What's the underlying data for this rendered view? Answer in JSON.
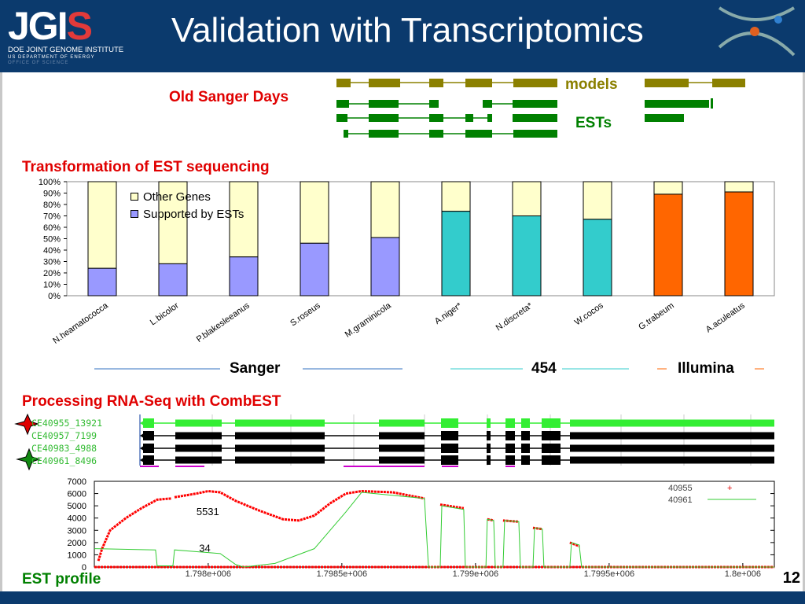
{
  "header": {
    "logo_text": "JGI",
    "logo_line1": "DOE JOINT GENOME INSTITUTE",
    "logo_line2": "US DEPARTMENT OF ENERGY",
    "logo_line3": "OFFICE OF SCIENCE",
    "title": "Validation with Transcriptomics"
  },
  "sanger": {
    "heading": "Old Sanger Days",
    "models_label": "models",
    "ests_label": "ESTs"
  },
  "colors": {
    "models": "#8b8000",
    "ests": "#008000",
    "other": "#ffffcc",
    "sanger": "#9999ff",
    "t454": "#33cccc",
    "illumina": "#ff6600",
    "title_red": "#e00000",
    "navy": "#0b3a6d"
  },
  "section2": {
    "heading": "Transformation of EST sequencing",
    "platforms": [
      "Sanger",
      "454",
      "Illumina"
    ]
  },
  "section3": {
    "heading": "Processing RNA-Seq with CombEST",
    "tracks": [
      "CE40955_13921",
      "CE40957_7199",
      "CE40983_4988",
      "CE40961_8496"
    ],
    "profile_label": "EST profile"
  },
  "page_number": "12",
  "chart_data": [
    {
      "type": "bar",
      "stacked": true,
      "title": "",
      "xlabel": "",
      "ylabel": "",
      "ylim": [
        0,
        100
      ],
      "yticks": [
        "0%",
        "10%",
        "20%",
        "30%",
        "40%",
        "50%",
        "60%",
        "70%",
        "80%",
        "90%",
        "100%"
      ],
      "categories": [
        "N.heamatococca",
        "L.bicolor",
        "P.blakesleeanus",
        "S.roseus",
        "M.graminicola",
        "A.niger*",
        "N.discreta*",
        "W.cocos",
        "G.trabeum",
        "A.aculeatus"
      ],
      "platform": [
        "Sanger",
        "Sanger",
        "Sanger",
        "Sanger",
        "Sanger",
        "454",
        "454",
        "454",
        "Illumina",
        "Illumina"
      ],
      "series": [
        {
          "name": "Supported by ESTs",
          "values": [
            24,
            28,
            34,
            46,
            51,
            74,
            70,
            67,
            89,
            91
          ]
        },
        {
          "name": "Other Genes",
          "values": [
            76,
            72,
            66,
            54,
            49,
            26,
            30,
            33,
            11,
            9
          ]
        }
      ],
      "legend": [
        "Other Genes",
        "Supported by ESTs"
      ],
      "legend_position": "top-left"
    },
    {
      "type": "line",
      "ylim": [
        0,
        7000
      ],
      "xlim": [
        1797574,
        1800118
      ],
      "yticks": [
        "0",
        "1000",
        "2000",
        "3000",
        "4000",
        "5000",
        "6000",
        "7000"
      ],
      "xticks": [
        {
          "v": 1798000,
          "label": "1.798e+006"
        },
        {
          "v": 1798500,
          "label": "1.7985e+006"
        },
        {
          "v": 1799000,
          "label": "1.799e+006"
        },
        {
          "v": 1799500,
          "label": "1.7995e+006"
        },
        {
          "v": 1800000,
          "label": "1.8e+006"
        }
      ],
      "legend": [
        "40955",
        "40961"
      ],
      "legend_position": "top-right",
      "annotations": [
        {
          "text": "5531",
          "x": 1798000,
          "y": 4500
        },
        {
          "text": "34",
          "x": 1798010,
          "y": 1500
        }
      ],
      "series": [
        {
          "name": "40955",
          "color": "#ff0000",
          "segments": [
            [
              [
                1797589,
                500
              ],
              [
                1797603,
                1500
              ],
              [
                1797633,
                3000
              ],
              [
                1797692,
                4000
              ],
              [
                1797750,
                4800
              ],
              [
                1797809,
                5500
              ],
              [
                1797862,
                5600
              ]
            ],
            [
              [
                1797874,
                5700
              ],
              [
                1797956,
                6000
              ],
              [
                1798000,
                6200
              ],
              [
                1798045,
                6100
              ],
              [
                1798103,
                5400
              ],
              [
                1798192,
                4600
              ],
              [
                1798280,
                3900
              ],
              [
                1798339,
                3800
              ],
              [
                1798397,
                4200
              ],
              [
                1798456,
                5200
              ],
              [
                1798515,
                6000
              ],
              [
                1798574,
                6200
              ],
              [
                1798691,
                6100
              ],
              [
                1798809,
                5600
              ]
            ],
            [
              [
                1798868,
                5100
              ],
              [
                1798956,
                4800
              ]
            ],
            [
              [
                1799044,
                3900
              ],
              [
                1799068,
                3800
              ]
            ],
            [
              [
                1799103,
                3800
              ],
              [
                1799162,
                3700
              ]
            ],
            [
              [
                1799215,
                3200
              ],
              [
                1799250,
                3100
              ]
            ],
            [
              [
                1799353,
                2000
              ],
              [
                1799388,
                1700
              ]
            ],
            [
              [
                1797574,
                0
              ],
              [
                1800118,
                0
              ]
            ]
          ]
        },
        {
          "name": "40961",
          "color": "#33cc33",
          "segments": [
            [
              [
                1797574,
                1500
              ],
              [
                1797803,
                1400
              ],
              [
                1797809,
                100
              ],
              [
                1797868,
                100
              ],
              [
                1797874,
                1400
              ],
              [
                1798045,
                1100
              ],
              [
                1798103,
                200
              ],
              [
                1798133,
                0
              ],
              [
                1798250,
                300
              ],
              [
                1798397,
                1500
              ],
              [
                1798515,
                4500
              ],
              [
                1798574,
                6100
              ],
              [
                1798809,
                5600
              ],
              [
                1798824,
                0
              ],
              [
                1798868,
                0
              ],
              [
                1798874,
                5000
              ],
              [
                1798956,
                4700
              ],
              [
                1798962,
                0
              ],
              [
                1799039,
                0
              ],
              [
                1799044,
                3900
              ],
              [
                1799068,
                3800
              ],
              [
                1799074,
                0
              ],
              [
                1799103,
                0
              ],
              [
                1799109,
                3800
              ],
              [
                1799162,
                3700
              ],
              [
                1799168,
                0
              ],
              [
                1799215,
                0
              ],
              [
                1799221,
                3200
              ],
              [
                1799250,
                3100
              ],
              [
                1799256,
                0
              ],
              [
                1799353,
                0
              ],
              [
                1799359,
                2000
              ],
              [
                1799388,
                1800
              ],
              [
                1799397,
                0
              ],
              [
                1800118,
                0
              ]
            ]
          ]
        }
      ]
    }
  ]
}
